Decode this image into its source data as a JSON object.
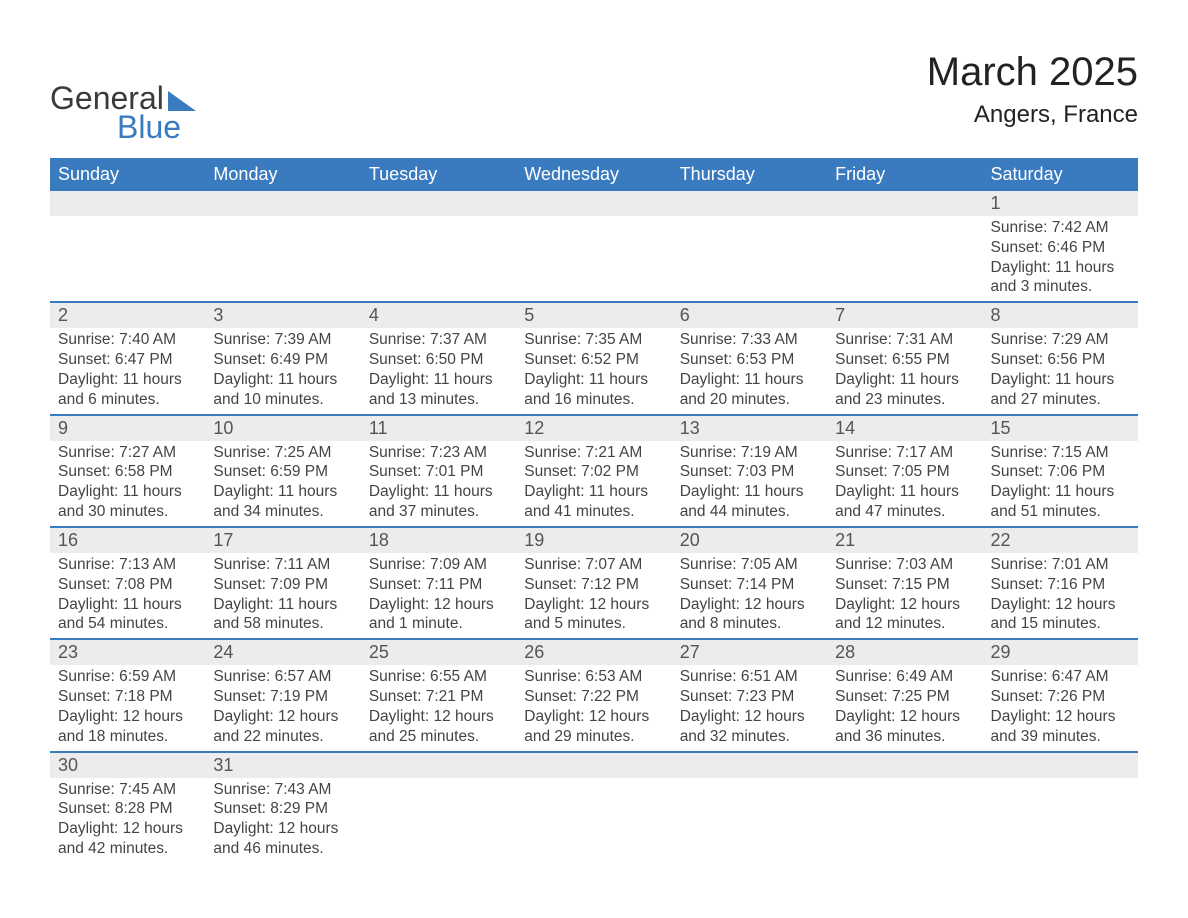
{
  "logo": {
    "general": "General",
    "blue": "Blue"
  },
  "title": "March 2025",
  "location": "Angers, France",
  "colors": {
    "header_bg": "#3a7bbf",
    "header_text": "#ffffff",
    "daynum_bg": "#ececec",
    "border": "#3a7bbf",
    "text": "#3a3a3a",
    "logo_blue": "#3a7bbf"
  },
  "weekdays": [
    "Sunday",
    "Monday",
    "Tuesday",
    "Wednesday",
    "Thursday",
    "Friday",
    "Saturday"
  ],
  "weeks": [
    [
      null,
      null,
      null,
      null,
      null,
      null,
      {
        "n": "1",
        "sr": "Sunrise: 7:42 AM",
        "ss": "Sunset: 6:46 PM",
        "d1": "Daylight: 11 hours",
        "d2": "and 3 minutes."
      }
    ],
    [
      {
        "n": "2",
        "sr": "Sunrise: 7:40 AM",
        "ss": "Sunset: 6:47 PM",
        "d1": "Daylight: 11 hours",
        "d2": "and 6 minutes."
      },
      {
        "n": "3",
        "sr": "Sunrise: 7:39 AM",
        "ss": "Sunset: 6:49 PM",
        "d1": "Daylight: 11 hours",
        "d2": "and 10 minutes."
      },
      {
        "n": "4",
        "sr": "Sunrise: 7:37 AM",
        "ss": "Sunset: 6:50 PM",
        "d1": "Daylight: 11 hours",
        "d2": "and 13 minutes."
      },
      {
        "n": "5",
        "sr": "Sunrise: 7:35 AM",
        "ss": "Sunset: 6:52 PM",
        "d1": "Daylight: 11 hours",
        "d2": "and 16 minutes."
      },
      {
        "n": "6",
        "sr": "Sunrise: 7:33 AM",
        "ss": "Sunset: 6:53 PM",
        "d1": "Daylight: 11 hours",
        "d2": "and 20 minutes."
      },
      {
        "n": "7",
        "sr": "Sunrise: 7:31 AM",
        "ss": "Sunset: 6:55 PM",
        "d1": "Daylight: 11 hours",
        "d2": "and 23 minutes."
      },
      {
        "n": "8",
        "sr": "Sunrise: 7:29 AM",
        "ss": "Sunset: 6:56 PM",
        "d1": "Daylight: 11 hours",
        "d2": "and 27 minutes."
      }
    ],
    [
      {
        "n": "9",
        "sr": "Sunrise: 7:27 AM",
        "ss": "Sunset: 6:58 PM",
        "d1": "Daylight: 11 hours",
        "d2": "and 30 minutes."
      },
      {
        "n": "10",
        "sr": "Sunrise: 7:25 AM",
        "ss": "Sunset: 6:59 PM",
        "d1": "Daylight: 11 hours",
        "d2": "and 34 minutes."
      },
      {
        "n": "11",
        "sr": "Sunrise: 7:23 AM",
        "ss": "Sunset: 7:01 PM",
        "d1": "Daylight: 11 hours",
        "d2": "and 37 minutes."
      },
      {
        "n": "12",
        "sr": "Sunrise: 7:21 AM",
        "ss": "Sunset: 7:02 PM",
        "d1": "Daylight: 11 hours",
        "d2": "and 41 minutes."
      },
      {
        "n": "13",
        "sr": "Sunrise: 7:19 AM",
        "ss": "Sunset: 7:03 PM",
        "d1": "Daylight: 11 hours",
        "d2": "and 44 minutes."
      },
      {
        "n": "14",
        "sr": "Sunrise: 7:17 AM",
        "ss": "Sunset: 7:05 PM",
        "d1": "Daylight: 11 hours",
        "d2": "and 47 minutes."
      },
      {
        "n": "15",
        "sr": "Sunrise: 7:15 AM",
        "ss": "Sunset: 7:06 PM",
        "d1": "Daylight: 11 hours",
        "d2": "and 51 minutes."
      }
    ],
    [
      {
        "n": "16",
        "sr": "Sunrise: 7:13 AM",
        "ss": "Sunset: 7:08 PM",
        "d1": "Daylight: 11 hours",
        "d2": "and 54 minutes."
      },
      {
        "n": "17",
        "sr": "Sunrise: 7:11 AM",
        "ss": "Sunset: 7:09 PM",
        "d1": "Daylight: 11 hours",
        "d2": "and 58 minutes."
      },
      {
        "n": "18",
        "sr": "Sunrise: 7:09 AM",
        "ss": "Sunset: 7:11 PM",
        "d1": "Daylight: 12 hours",
        "d2": "and 1 minute."
      },
      {
        "n": "19",
        "sr": "Sunrise: 7:07 AM",
        "ss": "Sunset: 7:12 PM",
        "d1": "Daylight: 12 hours",
        "d2": "and 5 minutes."
      },
      {
        "n": "20",
        "sr": "Sunrise: 7:05 AM",
        "ss": "Sunset: 7:14 PM",
        "d1": "Daylight: 12 hours",
        "d2": "and 8 minutes."
      },
      {
        "n": "21",
        "sr": "Sunrise: 7:03 AM",
        "ss": "Sunset: 7:15 PM",
        "d1": "Daylight: 12 hours",
        "d2": "and 12 minutes."
      },
      {
        "n": "22",
        "sr": "Sunrise: 7:01 AM",
        "ss": "Sunset: 7:16 PM",
        "d1": "Daylight: 12 hours",
        "d2": "and 15 minutes."
      }
    ],
    [
      {
        "n": "23",
        "sr": "Sunrise: 6:59 AM",
        "ss": "Sunset: 7:18 PM",
        "d1": "Daylight: 12 hours",
        "d2": "and 18 minutes."
      },
      {
        "n": "24",
        "sr": "Sunrise: 6:57 AM",
        "ss": "Sunset: 7:19 PM",
        "d1": "Daylight: 12 hours",
        "d2": "and 22 minutes."
      },
      {
        "n": "25",
        "sr": "Sunrise: 6:55 AM",
        "ss": "Sunset: 7:21 PM",
        "d1": "Daylight: 12 hours",
        "d2": "and 25 minutes."
      },
      {
        "n": "26",
        "sr": "Sunrise: 6:53 AM",
        "ss": "Sunset: 7:22 PM",
        "d1": "Daylight: 12 hours",
        "d2": "and 29 minutes."
      },
      {
        "n": "27",
        "sr": "Sunrise: 6:51 AM",
        "ss": "Sunset: 7:23 PM",
        "d1": "Daylight: 12 hours",
        "d2": "and 32 minutes."
      },
      {
        "n": "28",
        "sr": "Sunrise: 6:49 AM",
        "ss": "Sunset: 7:25 PM",
        "d1": "Daylight: 12 hours",
        "d2": "and 36 minutes."
      },
      {
        "n": "29",
        "sr": "Sunrise: 6:47 AM",
        "ss": "Sunset: 7:26 PM",
        "d1": "Daylight: 12 hours",
        "d2": "and 39 minutes."
      }
    ],
    [
      {
        "n": "30",
        "sr": "Sunrise: 7:45 AM",
        "ss": "Sunset: 8:28 PM",
        "d1": "Daylight: 12 hours",
        "d2": "and 42 minutes."
      },
      {
        "n": "31",
        "sr": "Sunrise: 7:43 AM",
        "ss": "Sunset: 8:29 PM",
        "d1": "Daylight: 12 hours",
        "d2": "and 46 minutes."
      },
      null,
      null,
      null,
      null,
      null
    ]
  ]
}
